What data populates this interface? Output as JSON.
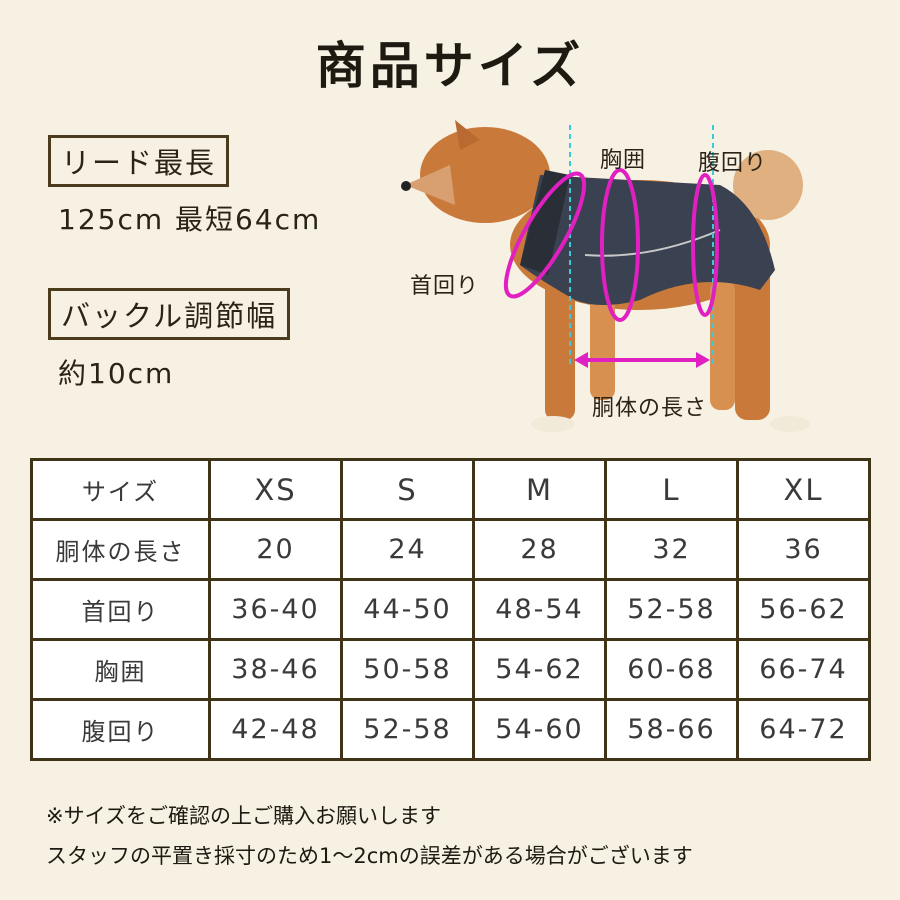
{
  "title": "商品サイズ",
  "lead": {
    "label": "リード最長",
    "value": "125cm 最短64cm"
  },
  "buckle": {
    "label": "バックル調節幅",
    "value": "約10cm"
  },
  "diagram": {
    "labels": {
      "chest": "胸囲",
      "belly": "腹回り",
      "neck": "首回り",
      "length": "胴体の長さ"
    },
    "colors": {
      "measure": "#e020c0",
      "guide": "#40c8d8",
      "vest": "#3a4150"
    }
  },
  "table": {
    "header": [
      "サイズ",
      "XS",
      "S",
      "M",
      "L",
      "XL"
    ],
    "rows": [
      [
        "胴体の長さ",
        "20",
        "24",
        "28",
        "32",
        "36"
      ],
      [
        "首回り",
        "36-40",
        "44-50",
        "48-54",
        "52-58",
        "56-62"
      ],
      [
        "胸囲",
        "38-46",
        "50-58",
        "54-62",
        "60-68",
        "66-74"
      ],
      [
        "腹回り",
        "42-48",
        "52-58",
        "54-60",
        "58-66",
        "64-72"
      ]
    ]
  },
  "notes": [
    "※サイズをご確認の上ご購入お願いします",
    "スタッフの平置き採寸のため1～2cmの誤差がある場合がございます"
  ]
}
